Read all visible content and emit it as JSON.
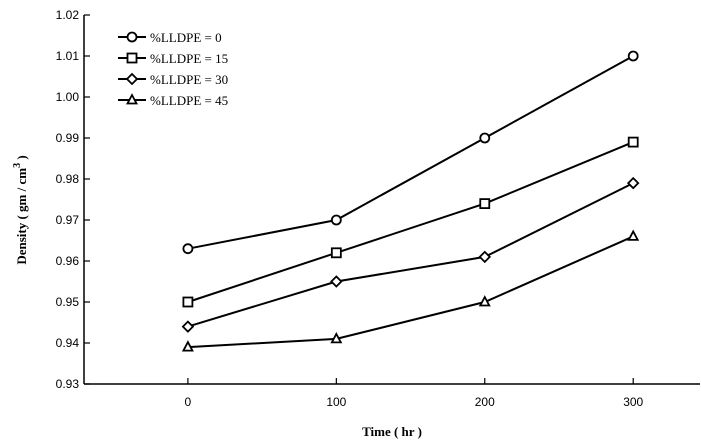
{
  "chart_data": {
    "type": "line",
    "xlabel": "Time ( hr )",
    "ylabel": "Density ( gm / cm",
    "ylabel_superscript": "3",
    "ylabel_close": " )",
    "x": [
      0,
      100,
      200,
      300
    ],
    "x_ticks": [
      "0",
      "100",
      "200",
      "300"
    ],
    "xlim": [
      -70,
      345
    ],
    "ylim": [
      0.93,
      1.02
    ],
    "y_ticks": [
      "0.93",
      "0.94",
      "0.95",
      "0.96",
      "0.97",
      "0.98",
      "0.99",
      "1.00",
      "1.01",
      "1.02"
    ],
    "grid": false,
    "legend_position": "top-left",
    "series": [
      {
        "name": "%LLDPE = 0",
        "marker": "circle",
        "values": [
          0.963,
          0.97,
          0.99,
          1.01
        ]
      },
      {
        "name": "%LLDPE = 15",
        "marker": "square",
        "values": [
          0.95,
          0.962,
          0.974,
          0.989
        ]
      },
      {
        "name": "%LLDPE = 30",
        "marker": "diamond",
        "values": [
          0.944,
          0.955,
          0.961,
          0.979
        ]
      },
      {
        "name": "%LLDPE = 45",
        "marker": "triangle",
        "values": [
          0.939,
          0.941,
          0.95,
          0.966
        ]
      }
    ]
  }
}
